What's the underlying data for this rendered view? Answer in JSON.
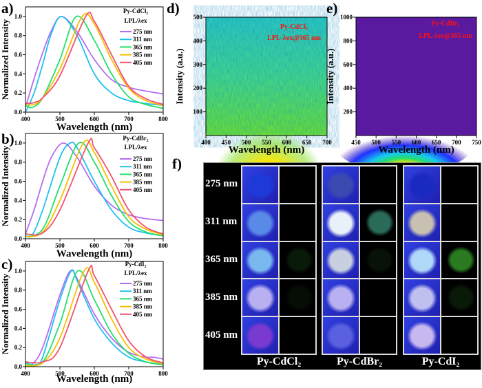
{
  "panel_labels": {
    "a": "a)",
    "b": "b)",
    "c": "c)",
    "d": "d)",
    "e": "e)",
    "f": "f)"
  },
  "chart_data": [
    {
      "id": "a",
      "type": "line",
      "xlabel": "Wavelength (nm)",
      "ylabel": "Normalized Intensity",
      "xlim": [
        400,
        800
      ],
      "ylim": [
        0,
        1.1
      ],
      "xticks": [
        400,
        500,
        600,
        700,
        800
      ],
      "yticks": [
        "0.0",
        "0.2",
        "0.4",
        "0.6",
        "0.8",
        "1.0"
      ],
      "legend": {
        "title": "Py-CdCl₂",
        "subtitle": "LPL/λex",
        "position": "top-right"
      },
      "series": [
        {
          "name": "275 nm",
          "color": "#b56cf5",
          "x": [
            400,
            425,
            450,
            475,
            505,
            550,
            600,
            650,
            700,
            750,
            800
          ],
          "y": [
            0.05,
            0.35,
            0.62,
            0.85,
            1.0,
            0.84,
            0.55,
            0.34,
            0.26,
            0.22,
            0.19
          ]
        },
        {
          "name": "311 nm",
          "color": "#1ec0f0",
          "x": [
            400,
            425,
            450,
            475,
            505,
            550,
            600,
            650,
            700,
            750,
            800
          ],
          "y": [
            0.0,
            0.2,
            0.5,
            0.82,
            1.0,
            0.8,
            0.4,
            0.2,
            0.12,
            0.09,
            0.07
          ]
        },
        {
          "name": "365 nm",
          "color": "#22e06a",
          "x": [
            400,
            420,
            450,
            500,
            548,
            600,
            650,
            700,
            750,
            800
          ],
          "y": [
            0.07,
            0.05,
            0.15,
            0.55,
            1.0,
            0.75,
            0.4,
            0.16,
            0.08,
            0.04
          ]
        },
        {
          "name": "385 nm",
          "color": "#f5c000",
          "x": [
            400,
            425,
            450,
            500,
            565,
            600,
            650,
            700,
            750,
            800
          ],
          "y": [
            0.08,
            0.08,
            0.15,
            0.45,
            1.0,
            0.92,
            0.55,
            0.25,
            0.12,
            0.07
          ]
        },
        {
          "name": "405 nm",
          "color": "#f2506e",
          "x": [
            400,
            425,
            450,
            500,
            575,
            600,
            650,
            700,
            750,
            800
          ],
          "y": [
            0.09,
            0.1,
            0.15,
            0.38,
            1.0,
            0.95,
            0.6,
            0.27,
            0.14,
            0.08
          ]
        }
      ]
    },
    {
      "id": "b",
      "type": "line",
      "xlabel": "Wavelength (nm)",
      "ylabel": "Normalized Intensity",
      "xlim": [
        400,
        800
      ],
      "ylim": [
        0,
        1.1
      ],
      "xticks": [
        400,
        500,
        600,
        700,
        800
      ],
      "yticks": [
        "0.0",
        "0.2",
        "0.4",
        "0.6",
        "0.8",
        "1.0"
      ],
      "legend": {
        "title": "Py-CdBr₂",
        "subtitle": "LPL/λex",
        "position": "top-right"
      },
      "series": [
        {
          "name": "275 nm",
          "color": "#b56cf5",
          "x": [
            400,
            425,
            450,
            475,
            510,
            550,
            600,
            650,
            700,
            750,
            800
          ],
          "y": [
            0.05,
            0.3,
            0.6,
            0.85,
            1.0,
            0.85,
            0.55,
            0.35,
            0.25,
            0.21,
            0.19
          ]
        },
        {
          "name": "311 nm",
          "color": "#1ec0f0",
          "x": [
            400,
            420,
            450,
            500,
            530,
            550,
            600,
            650,
            700,
            750,
            800
          ],
          "y": [
            0.03,
            0.04,
            0.3,
            0.85,
            1.0,
            0.95,
            0.6,
            0.3,
            0.12,
            0.06,
            0.03
          ]
        },
        {
          "name": "365 nm",
          "color": "#22e06a",
          "x": [
            400,
            450,
            500,
            555,
            600,
            650,
            700,
            750,
            800
          ],
          "y": [
            0.02,
            0.1,
            0.55,
            1.0,
            0.8,
            0.45,
            0.18,
            0.07,
            0.03
          ]
        },
        {
          "name": "385 nm",
          "color": "#f5c000",
          "x": [
            400,
            450,
            500,
            568,
            600,
            650,
            700,
            750,
            800
          ],
          "y": [
            0.02,
            0.07,
            0.4,
            1.0,
            0.9,
            0.55,
            0.23,
            0.1,
            0.04
          ]
        },
        {
          "name": "405 nm",
          "color": "#f2506e",
          "x": [
            400,
            450,
            500,
            582,
            600,
            650,
            700,
            750,
            800
          ],
          "y": [
            0.05,
            0.06,
            0.3,
            1.0,
            0.95,
            0.65,
            0.3,
            0.12,
            0.05
          ]
        }
      ]
    },
    {
      "id": "c",
      "type": "line",
      "xlabel": "Wavelength (nm)",
      "ylabel": "Normalized Intensity",
      "xlim": [
        400,
        800
      ],
      "ylim": [
        0,
        1.1
      ],
      "xticks": [
        400,
        500,
        600,
        700,
        800
      ],
      "yticks": [
        "0.0",
        "0.2",
        "0.4",
        "0.6",
        "0.8",
        "1.0"
      ],
      "legend": {
        "title": "Py-CdI₂",
        "subtitle": "LPL/λex",
        "position": "top-right"
      },
      "series": [
        {
          "name": "275 nm",
          "color": "#b56cf5",
          "x": [
            400,
            420,
            450,
            500,
            530,
            550,
            600,
            650,
            700,
            750,
            770,
            800
          ],
          "y": [
            0.05,
            0.03,
            0.2,
            0.75,
            1.0,
            0.92,
            0.55,
            0.3,
            0.15,
            0.1,
            0.1,
            0.08
          ]
        },
        {
          "name": "311 nm",
          "color": "#1ec0f0",
          "x": [
            400,
            430,
            450,
            500,
            533,
            550,
            600,
            650,
            700,
            750,
            800
          ],
          "y": [
            0.04,
            0.02,
            0.1,
            0.7,
            1.0,
            0.9,
            0.5,
            0.25,
            0.1,
            0.05,
            0.02
          ]
        },
        {
          "name": "365 nm",
          "color": "#22e06a",
          "x": [
            400,
            450,
            500,
            552,
            600,
            650,
            700,
            750,
            800
          ],
          "y": [
            0.03,
            0.05,
            0.45,
            1.0,
            0.7,
            0.35,
            0.14,
            0.05,
            0.02
          ]
        },
        {
          "name": "385 nm",
          "color": "#f5c000",
          "x": [
            400,
            450,
            500,
            570,
            600,
            650,
            700,
            750,
            800
          ],
          "y": [
            0.01,
            0.04,
            0.3,
            1.0,
            0.88,
            0.5,
            0.2,
            0.08,
            0.03
          ]
        },
        {
          "name": "405 nm",
          "color": "#f2506e",
          "x": [
            400,
            450,
            500,
            582,
            600,
            650,
            700,
            750,
            800
          ],
          "y": [
            0.05,
            0.05,
            0.2,
            1.0,
            0.95,
            0.6,
            0.27,
            0.1,
            0.04
          ]
        }
      ]
    },
    {
      "id": "d",
      "type": "heatmap",
      "xlabel": "Wavelength (nm)",
      "ylabel": "Intensity (a.u.)",
      "xlim": [
        400,
        700
      ],
      "ylim": [
        0,
        500
      ],
      "xticks": [
        400,
        450,
        500,
        550,
        600,
        650,
        700
      ],
      "yticks": [
        100,
        200,
        300,
        400,
        500
      ],
      "annotation": [
        "Py-CdCl₂",
        "LPL-λex@365 nm"
      ],
      "colormap": [
        "#ff1a00",
        "#ffe600",
        "#5de03a",
        "#2cc8c0"
      ]
    },
    {
      "id": "e",
      "type": "heatmap",
      "xlabel": "Wavelength (nm)",
      "ylabel": "Intensity (a.u.)",
      "xlim": [
        450,
        750
      ],
      "ylim": [
        0,
        1000
      ],
      "xticks": [
        450,
        500,
        550,
        600,
        650,
        700,
        750
      ],
      "yticks": [
        200,
        400,
        600,
        800,
        1000
      ],
      "annotation": [
        "Py-CdBr₂",
        "LPL-λex@365 nm"
      ],
      "colormap": [
        "#ff1a00",
        "#ffe600",
        "#22e06a",
        "#18c8f0",
        "#2030ff",
        "#5a1aa0"
      ]
    }
  ],
  "photo_panel": {
    "row_labels": [
      "275 nm",
      "311 nm",
      "365 nm",
      "385 nm",
      "405 nm"
    ],
    "groups": [
      {
        "label": "Py-CdCl₂",
        "cells": [
          [
            "#1d3ad8",
            "#000000"
          ],
          [
            "#5a8ae8",
            "#000000"
          ],
          [
            "#7ab8f0",
            "#0a1a08"
          ],
          [
            "#b8b0f0",
            "#050d05"
          ],
          [
            "#7a3ad0",
            "#000000"
          ]
        ]
      },
      {
        "label": "Py-CdBr₂",
        "cells": [
          [
            "#3a4ab0",
            "#000000"
          ],
          [
            "#e8f0f8",
            "#2a6a58"
          ],
          [
            "#c8d0e0",
            "#081208"
          ],
          [
            "#b8b0f0",
            "#000000"
          ],
          [
            "#5a60e0",
            "#000000"
          ]
        ]
      },
      {
        "label": "Py-CdI₂",
        "cells": [
          [
            "#1a2ac0",
            "#000000"
          ],
          [
            "#c8c0b0",
            "#000000"
          ],
          [
            "#b0d8f8",
            "#2a7a20"
          ],
          [
            "#c0c0f0",
            "#0a1a08"
          ],
          [
            "#c8b8f0",
            "#000000"
          ]
        ]
      }
    ]
  }
}
